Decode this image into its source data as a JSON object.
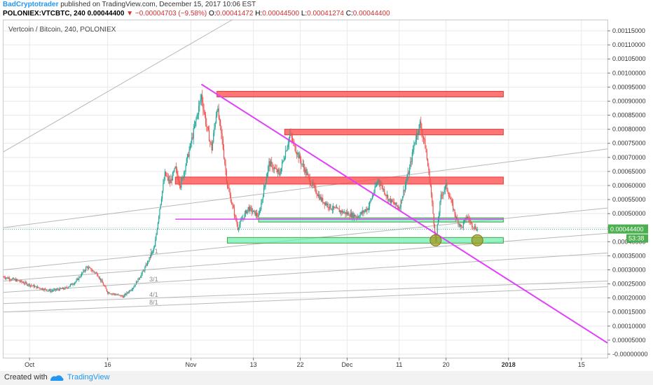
{
  "header": {
    "author": "BadCryptotrader",
    "published": "published on TradingView.com, December 15, 2017 10:06 EST",
    "symbol": "POLONIEX:VTCBTC, 240",
    "last": "0.00044400",
    "change": "−0.00004703 (−9.58%)",
    "o_label": "O:",
    "o_value": "0.00041472",
    "h_label": "H:",
    "h_value": "0.00044500",
    "l_label": "L:",
    "l_value": "0.00041274",
    "c_label": "C:",
    "c_value": "0.00044400"
  },
  "footer": {
    "created": "Created with",
    "brand": "TradingView"
  },
  "colors": {
    "up": "#26a69a",
    "down": "#ef5350",
    "trendline": "#e040fb",
    "resistance": "#ff5252",
    "support": "#69f0ae",
    "grid": "#e9e9e9",
    "price_tag": "#4caf50"
  },
  "chart_data": {
    "type": "candlestick",
    "title": "Vertcoin / Bitcoin, 240, POLONIEX",
    "xlabel": "",
    "ylabel": "",
    "x_ticks": [
      "Oct",
      "16",
      "Nov",
      "13",
      "22",
      "Dec",
      "11",
      "20",
      "2018",
      "15"
    ],
    "y_ticks": [
      "0.00115000",
      "0.00110000",
      "0.00105000",
      "0.00100000",
      "0.00095000",
      "0.00090000",
      "0.00085000",
      "0.00080000",
      "0.00075000",
      "0.00070000",
      "0.00065000",
      "0.00060000",
      "0.00055000",
      "0.00050000",
      "0.00045000",
      "0.00040000",
      "0.00035000",
      "0.00030000",
      "0.00025000",
      "0.00020000",
      "0.00015000",
      "0.00010000",
      "0.00005000",
      "-0.00000000"
    ],
    "ylim": [
      -1.25e-05,
      0.0011875
    ],
    "x_range": [
      "2017-09-26",
      "2018-01-20"
    ],
    "last_price": "0.00044400",
    "countdown": "53:38",
    "price_path": [
      [
        "2017-09-26",
        0.000275
      ],
      [
        "2017-09-29",
        0.00026
      ],
      [
        "2017-10-02",
        0.00024
      ],
      [
        "2017-10-05",
        0.000225
      ],
      [
        "2017-10-08",
        0.000235
      ],
      [
        "2017-10-10",
        0.00026
      ],
      [
        "2017-10-12",
        0.00031
      ],
      [
        "2017-10-14",
        0.000285
      ],
      [
        "2017-10-16",
        0.00022
      ],
      [
        "2017-10-19",
        0.000205
      ],
      [
        "2017-10-21",
        0.00024
      ],
      [
        "2017-10-23",
        0.0003
      ],
      [
        "2017-10-25",
        0.00038
      ],
      [
        "2017-10-26",
        0.00052
      ],
      [
        "2017-10-27",
        0.00064
      ],
      [
        "2017-10-28",
        0.00061
      ],
      [
        "2017-10-29",
        0.00066
      ],
      [
        "2017-10-30",
        0.0006
      ],
      [
        "2017-11-01",
        0.00075
      ],
      [
        "2017-11-03",
        0.00092
      ],
      [
        "2017-11-04",
        0.00081
      ],
      [
        "2017-11-05",
        0.00073
      ],
      [
        "2017-11-06",
        0.00088
      ],
      [
        "2017-11-07",
        0.00076
      ],
      [
        "2017-11-08",
        0.0006
      ],
      [
        "2017-11-10",
        0.00045
      ],
      [
        "2017-11-12",
        0.00052
      ],
      [
        "2017-11-14",
        0.00049
      ],
      [
        "2017-11-16",
        0.00068
      ],
      [
        "2017-11-18",
        0.00064
      ],
      [
        "2017-11-20",
        0.00078
      ],
      [
        "2017-11-22",
        0.00069
      ],
      [
        "2017-11-24",
        0.00061
      ],
      [
        "2017-11-26",
        0.00055
      ],
      [
        "2017-11-28",
        0.00052
      ],
      [
        "2017-12-01",
        0.0005
      ],
      [
        "2017-12-03",
        0.00049
      ],
      [
        "2017-12-05",
        0.00052
      ],
      [
        "2017-12-07",
        0.00062
      ],
      [
        "2017-12-09",
        0.00055
      ],
      [
        "2017-12-11",
        0.00052
      ],
      [
        "2017-12-13",
        0.00066
      ],
      [
        "2017-12-14",
        0.00076
      ],
      [
        "2017-12-15",
        0.00082
      ],
      [
        "2017-12-16",
        0.00074
      ],
      [
        "2017-12-17",
        0.0006
      ],
      [
        "2017-12-18",
        0.0004
      ],
      [
        "2017-12-19",
        0.00056
      ],
      [
        "2017-12-20",
        0.0006
      ],
      [
        "2017-12-21",
        0.00054
      ],
      [
        "2017-12-22",
        0.00048
      ],
      [
        "2017-12-23",
        0.00045
      ],
      [
        "2017-12-24",
        0.00049
      ],
      [
        "2017-12-25",
        0.00046
      ],
      [
        "2017-12-26",
        0.000444
      ]
    ],
    "zones": [
      {
        "x1": "2017-11-06",
        "x2": "2017-12-31",
        "y1": 0.000915,
        "y2": 0.000935,
        "color": "#ff5252"
      },
      {
        "x1": "2017-11-19",
        "x2": "2017-12-31",
        "y1": 0.00078,
        "y2": 0.0008,
        "color": "#ff5252"
      },
      {
        "x1": "2017-10-29",
        "x2": "2017-12-31",
        "y1": 0.000605,
        "y2": 0.00063,
        "color": "#ff5252"
      },
      {
        "x1": "2017-11-14",
        "x2": "2017-12-31",
        "y1": 0.00047,
        "y2": 0.000485,
        "color": "#69f0ae"
      },
      {
        "x1": "2017-11-08",
        "x2": "2017-12-31",
        "y1": 0.000395,
        "y2": 0.000415,
        "color": "#69f0ae"
      }
    ],
    "trend_line": {
      "from": [
        "2017-11-03",
        0.00096
      ],
      "to": [
        "2018-01-20",
        4e-05
      ]
    },
    "horizontal_line": {
      "from": [
        "2017-10-29",
        0.00048
      ],
      "to": [
        "2017-11-10",
        0.00048
      ],
      "y": 0.00048
    },
    "circles": [
      {
        "x": "2017-12-18",
        "y": 0.000405
      },
      {
        "x": "2017-12-26",
        "y": 0.000405
      }
    ],
    "fan_lines": [
      {
        "from": [
          "2017-09-26",
          0.00072
        ],
        "to": [
          "2017-11-09",
          0.00119
        ],
        "label": ""
      },
      {
        "from": [
          "2017-09-26",
          0.00045
        ],
        "to": [
          "2018-01-20",
          0.00073
        ],
        "label": ""
      },
      {
        "from": [
          "2017-09-26",
          0.0003
        ],
        "to": [
          "2018-01-20",
          0.00052
        ],
        "label": "1/1"
      },
      {
        "from": [
          "2017-09-26",
          0.00026
        ],
        "to": [
          "2018-01-20",
          0.00043
        ],
        "label": ""
      },
      {
        "from": [
          "2017-09-26",
          0.00022
        ],
        "to": [
          "2018-01-20",
          0.00036
        ],
        "label": "3/1"
      },
      {
        "from": [
          "2017-09-26",
          0.00018
        ],
        "to": [
          "2018-01-20",
          0.00026
        ],
        "label": "4/1"
      },
      {
        "from": [
          "2017-09-26",
          0.00015
        ],
        "to": [
          "2018-01-20",
          0.00024
        ],
        "label": "8/1"
      }
    ]
  }
}
